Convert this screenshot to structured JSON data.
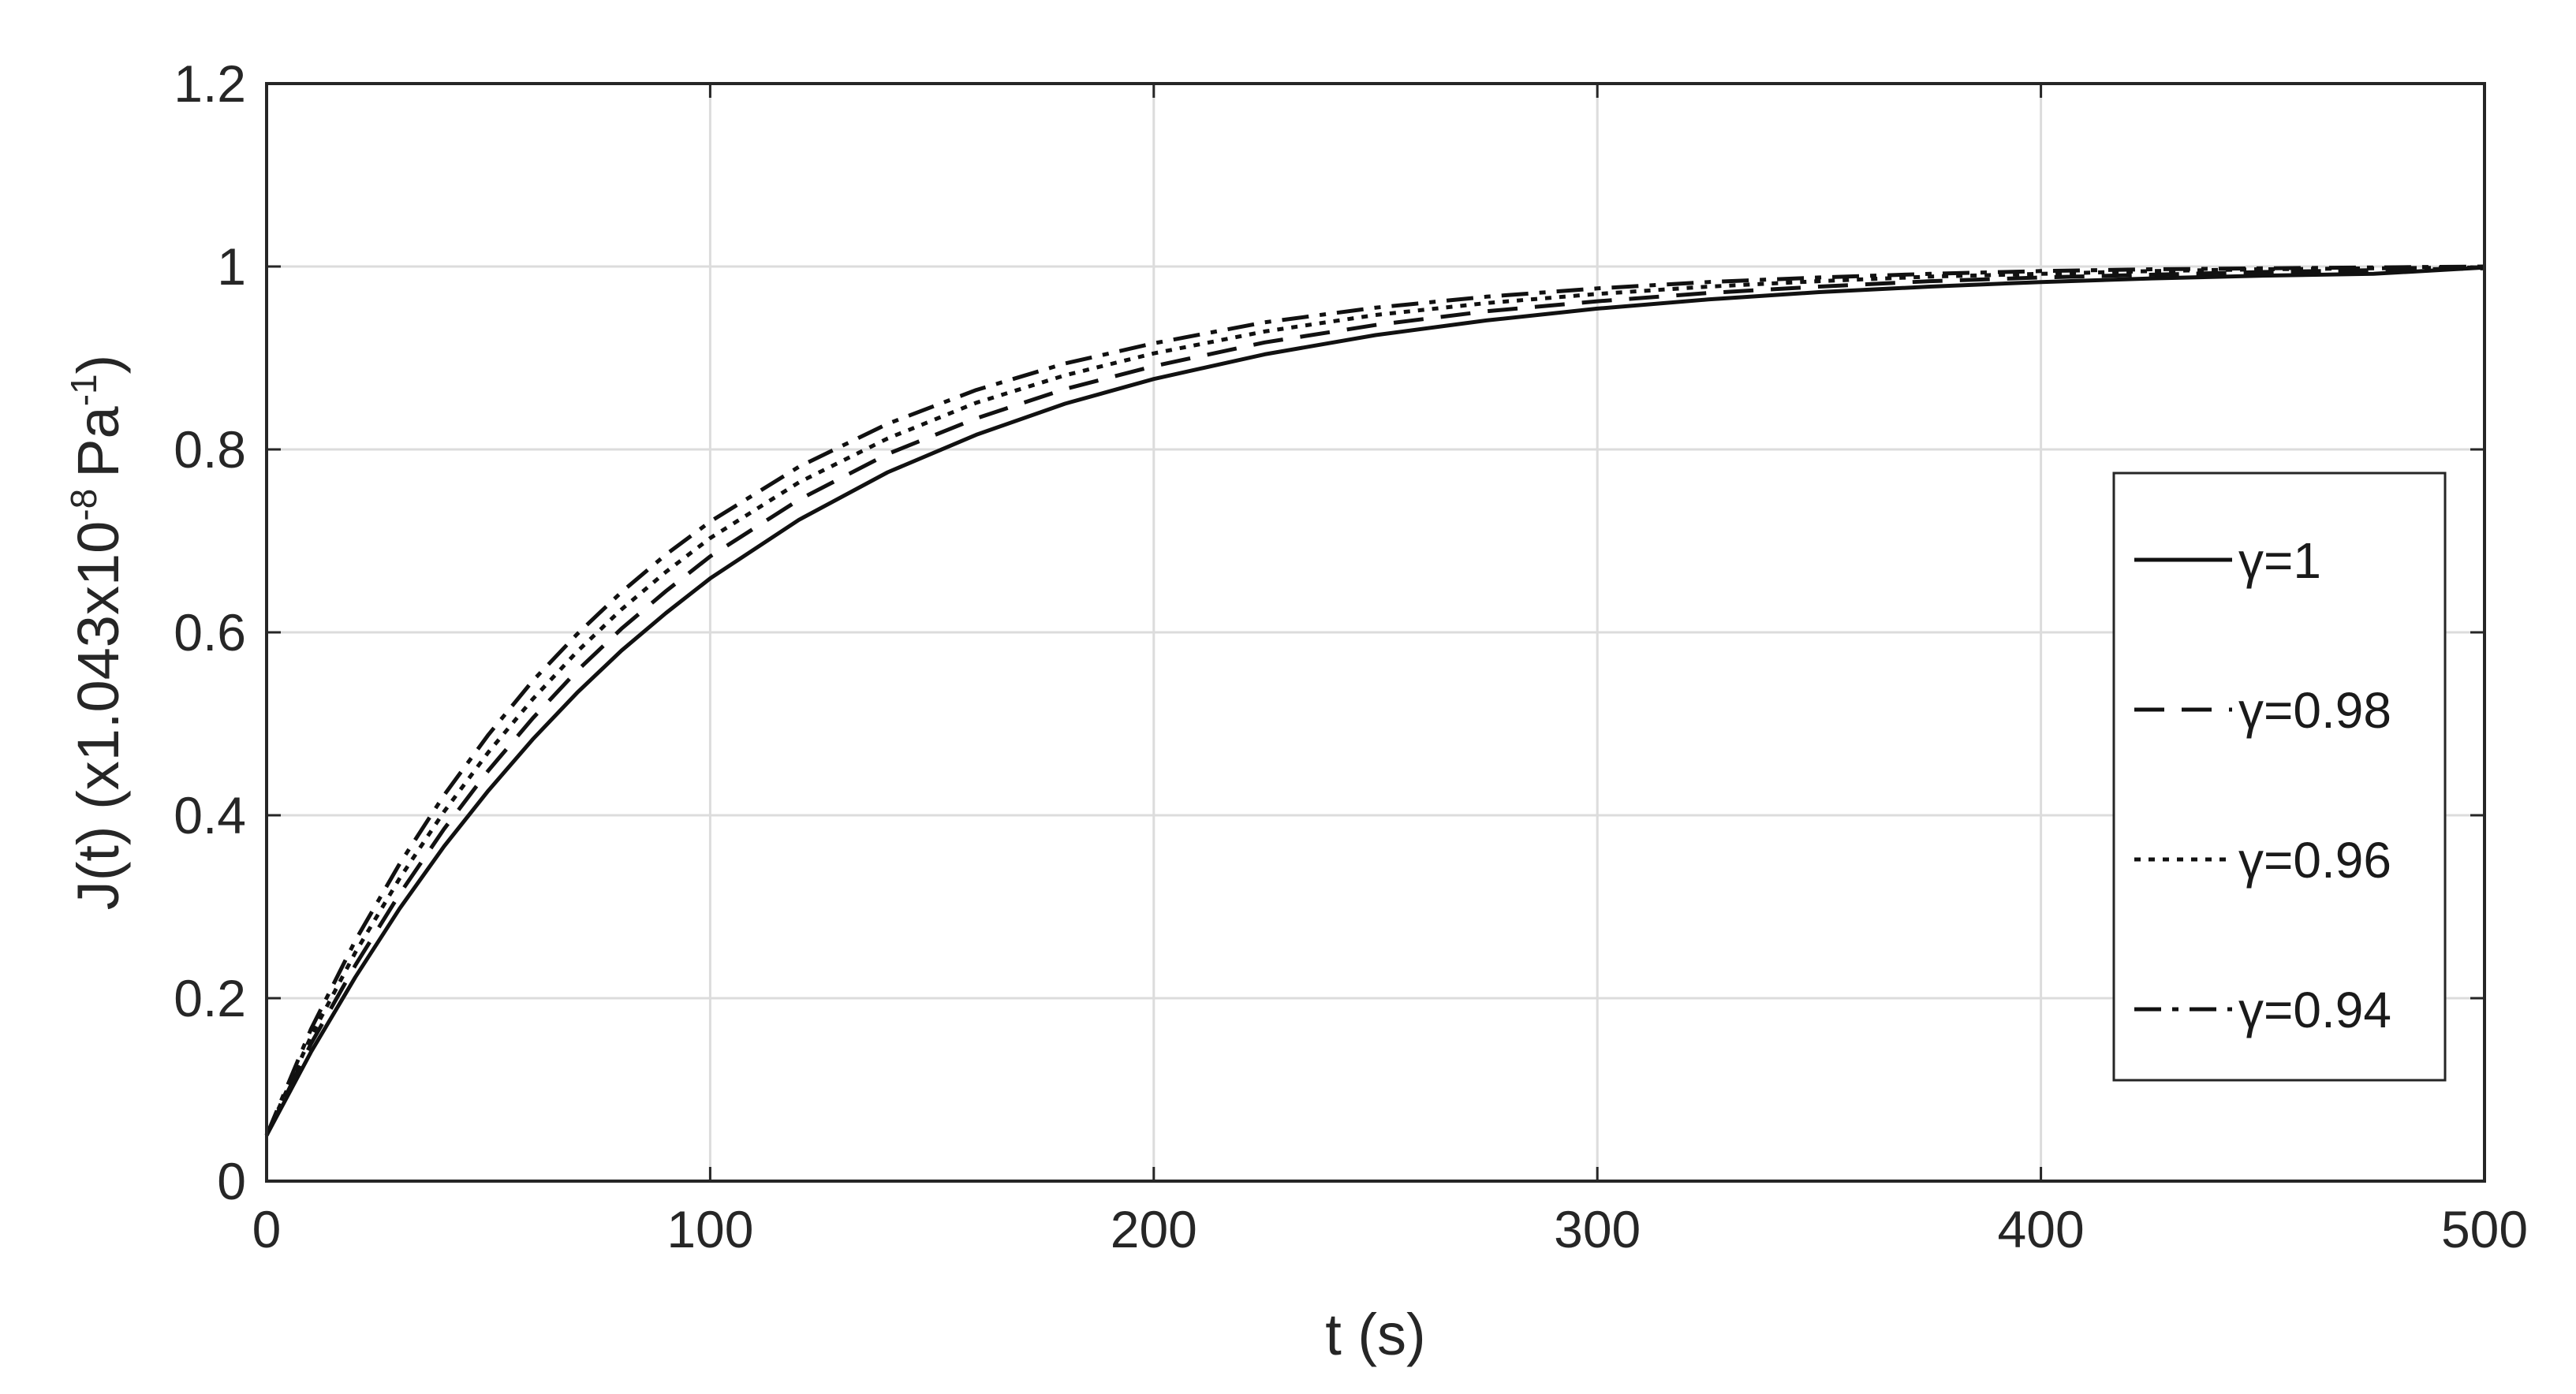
{
  "chart_data": {
    "type": "line",
    "title": "",
    "xlabel": "t (s)",
    "ylabel": "J(t) (x1.043x10⁻⁸ Pa⁻¹)",
    "ylabel_parts": {
      "main": "J(t) (x1.043x10",
      "sup1": "-8",
      "unit": "Pa",
      "sup2": "-1",
      "close": ")"
    },
    "xlim": [
      0,
      500
    ],
    "ylim": [
      0,
      1.2
    ],
    "xticks": [
      "0",
      "100",
      "200",
      "300",
      "400",
      "500"
    ],
    "yticks": [
      "0",
      "0.2",
      "0.4",
      "0.6",
      "0.8",
      "1",
      "1.2"
    ],
    "grid": true,
    "legend_position": "right",
    "x": [
      0,
      10,
      20,
      30,
      40,
      50,
      60,
      70,
      80,
      90,
      100,
      120,
      140,
      160,
      180,
      200,
      225,
      250,
      275,
      300,
      325,
      350,
      375,
      400,
      425,
      450,
      475,
      500
    ],
    "series": [
      {
        "name": "γ=1",
        "style": "solid",
        "values": [
          0.05,
          0.141,
          0.223,
          0.298,
          0.366,
          0.427,
          0.483,
          0.534,
          0.58,
          0.621,
          0.659,
          0.723,
          0.775,
          0.816,
          0.85,
          0.877,
          0.904,
          0.925,
          0.941,
          0.954,
          0.964,
          0.972,
          0.978,
          0.983,
          0.987,
          0.99,
          0.992,
          0.999
        ]
      },
      {
        "name": "γ=0.98",
        "style": "dashed",
        "values": [
          0.05,
          0.15,
          0.236,
          0.314,
          0.385,
          0.449,
          0.506,
          0.558,
          0.604,
          0.645,
          0.683,
          0.745,
          0.795,
          0.834,
          0.866,
          0.891,
          0.917,
          0.936,
          0.951,
          0.962,
          0.971,
          0.978,
          0.984,
          0.988,
          0.991,
          0.994,
          0.996,
          0.998
        ]
      },
      {
        "name": "γ=0.96",
        "style": "dotted",
        "values": [
          0.05,
          0.158,
          0.25,
          0.331,
          0.404,
          0.469,
          0.527,
          0.579,
          0.625,
          0.666,
          0.703,
          0.764,
          0.812,
          0.851,
          0.881,
          0.905,
          0.929,
          0.947,
          0.96,
          0.97,
          0.978,
          0.984,
          0.989,
          0.992,
          0.995,
          0.997,
          0.998,
          0.999
        ]
      },
      {
        "name": "γ=0.94",
        "style": "dashdot",
        "values": [
          0.05,
          0.166,
          0.263,
          0.347,
          0.422,
          0.488,
          0.547,
          0.598,
          0.644,
          0.685,
          0.721,
          0.781,
          0.828,
          0.865,
          0.894,
          0.916,
          0.939,
          0.955,
          0.967,
          0.976,
          0.983,
          0.988,
          0.992,
          0.995,
          0.997,
          0.998,
          0.999,
          1.0
        ]
      }
    ]
  }
}
